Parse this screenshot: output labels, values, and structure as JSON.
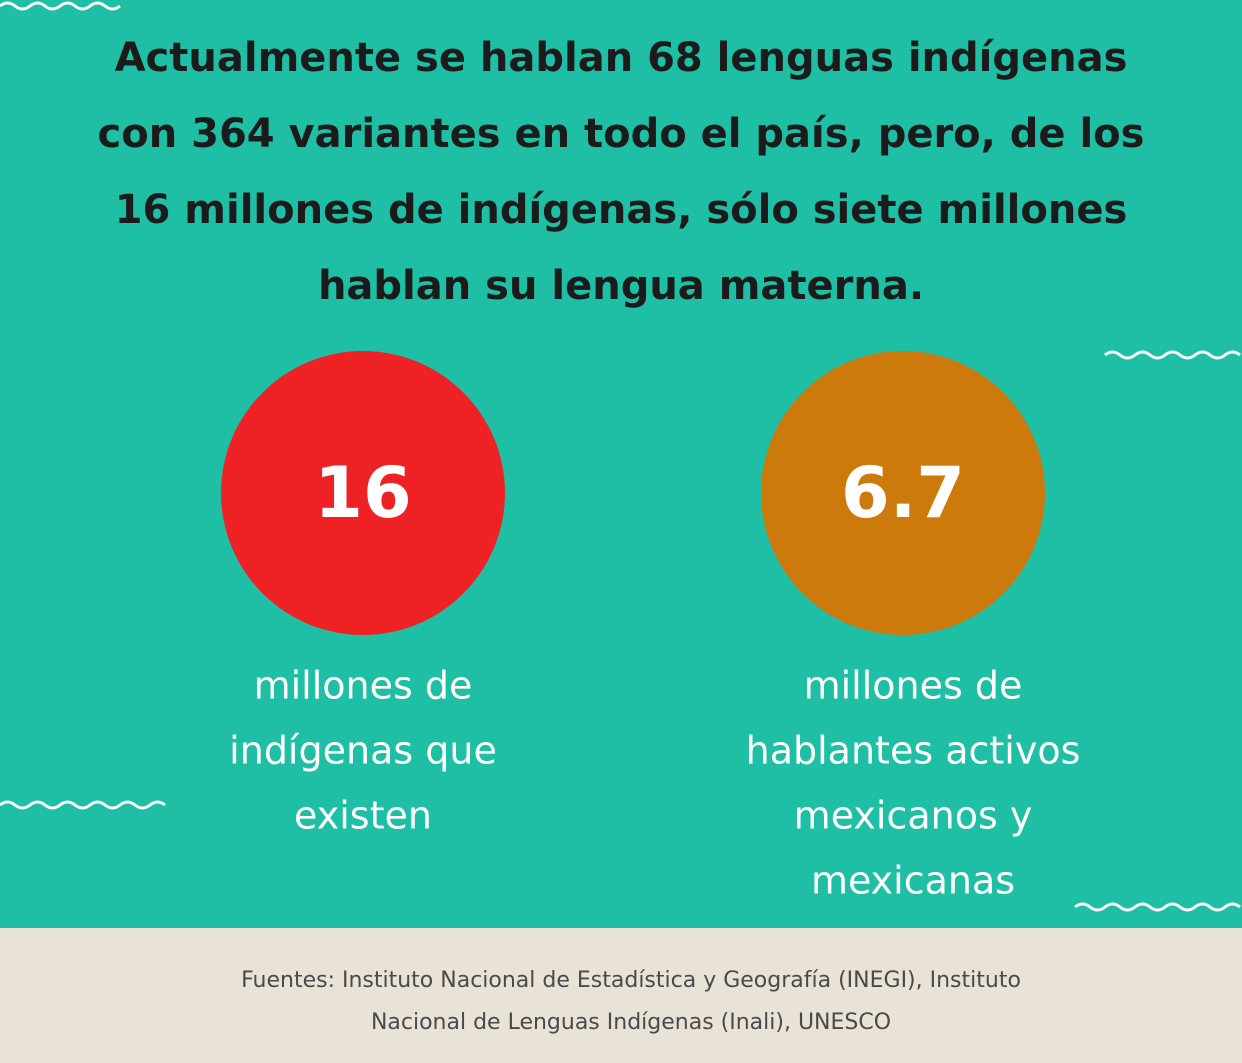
{
  "headline": {
    "lines": [
      "Actualmente se hablan 68 lenguas indígenas",
      "con 364 variantes en todo el país, pero, de los",
      "16 millones de indígenas, sólo siete millones",
      "hablan su lengua materna."
    ]
  },
  "stats": [
    {
      "value": "16",
      "color": "#ee2225",
      "label_lines": [
        "millones de",
        "indígenas que",
        "existen"
      ]
    },
    {
      "value": "6.7",
      "color": "#cb7a0b",
      "label_lines": [
        "millones de",
        "hablantes activos",
        "mexicanos y",
        "mexicanas"
      ]
    }
  ],
  "footer": {
    "lines": [
      "Fuentes: Instituto Nacional de Estadística y Geografía (INEGI), Instituto",
      "Nacional de Lenguas Indígenas (Inali), UNESCO"
    ]
  }
}
